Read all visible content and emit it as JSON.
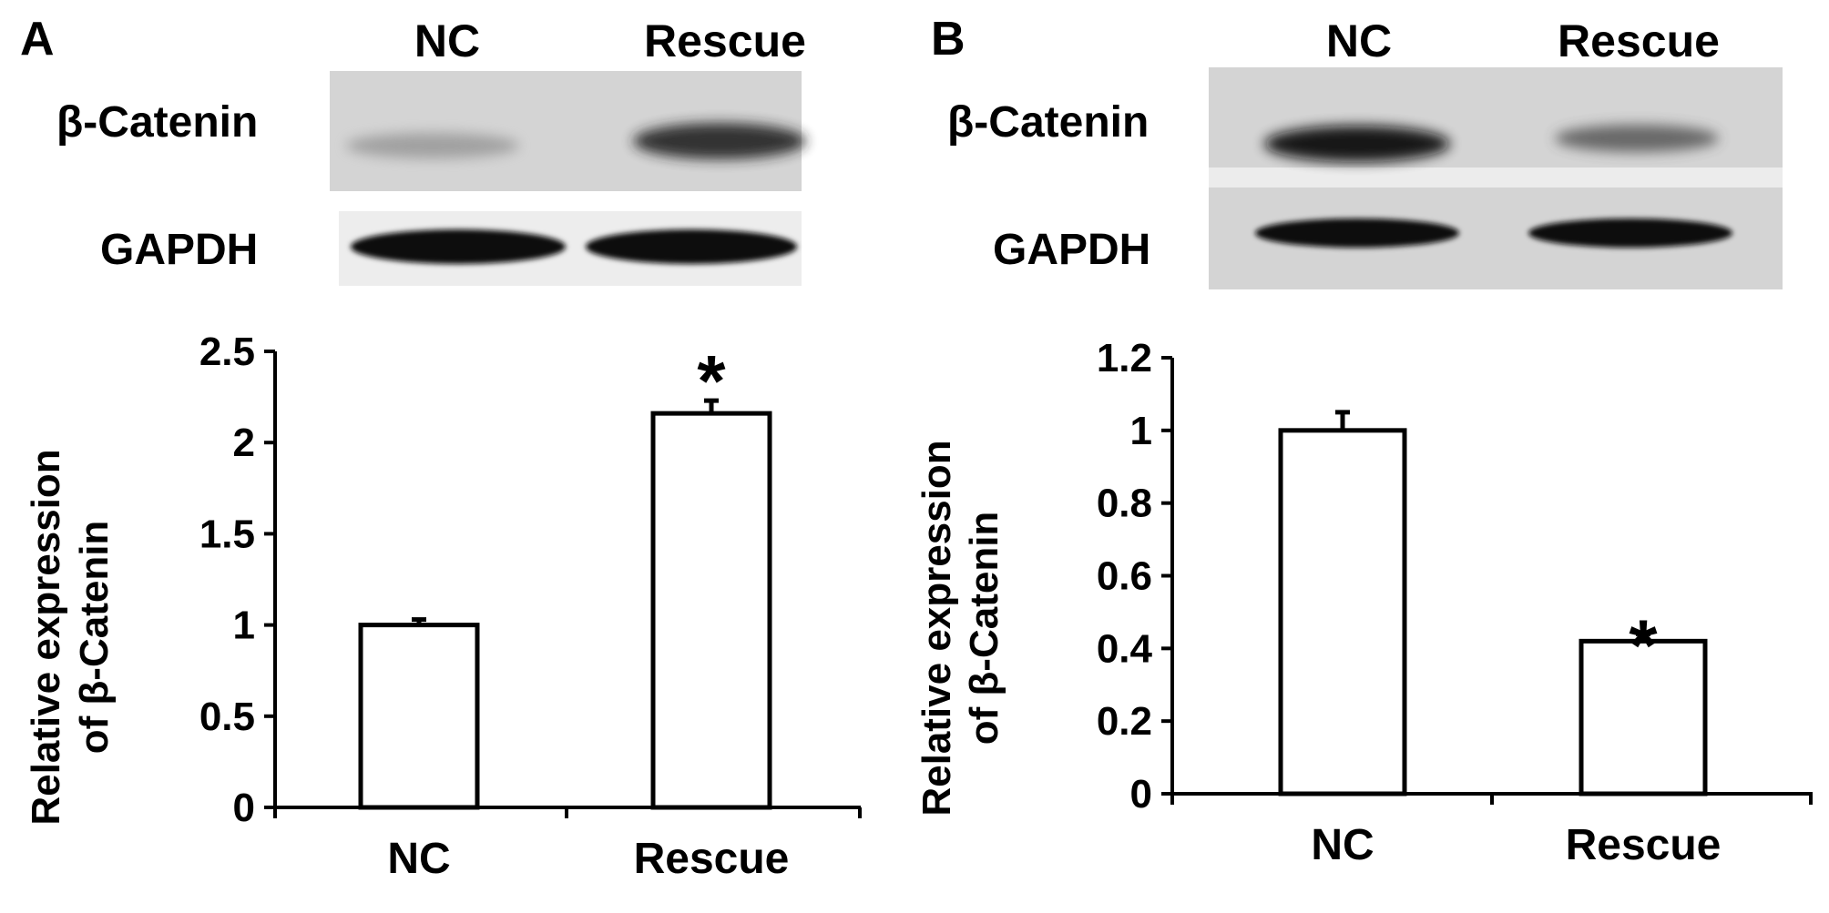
{
  "figure": {
    "panels": [
      {
        "letter": "A",
        "blot": {
          "lanes": [
            "NC",
            "Rescue"
          ],
          "rows": [
            "β-Catenin",
            "GAPDH"
          ],
          "band_intensity": {
            "β-Catenin": [
              0.25,
              0.8
            ],
            "GAPDH": [
              1.0,
              1.0
            ]
          }
        }
      },
      {
        "letter": "B",
        "blot": {
          "lanes": [
            "NC",
            "Rescue"
          ],
          "rows": [
            "β-Catenin",
            "GAPDH"
          ],
          "band_intensity": {
            "β-Catenin": [
              0.95,
              0.55
            ],
            "GAPDH": [
              1.0,
              1.0
            ]
          }
        }
      }
    ]
  },
  "chart_data": [
    {
      "type": "bar",
      "panel": "A",
      "categories": [
        "NC",
        "Rescue"
      ],
      "values": [
        1.0,
        2.16
      ],
      "errors": [
        0.03,
        0.07
      ],
      "significance": [
        "",
        "*"
      ],
      "ylabel_line1": "Relative expression",
      "ylabel_line2": "of β-Catenin",
      "ylim": [
        0,
        2.5
      ],
      "yticks": [
        "0",
        "0.5",
        "1",
        "1.5",
        "2",
        "2.5"
      ],
      "ytick_values": [
        0,
        0.5,
        1,
        1.5,
        2,
        2.5
      ]
    },
    {
      "type": "bar",
      "panel": "B",
      "categories": [
        "NC",
        "Rescue"
      ],
      "values": [
        1.0,
        0.42
      ],
      "errors": [
        0.05,
        0.02
      ],
      "significance": [
        "",
        "*"
      ],
      "ylabel_line1": "Relative expression",
      "ylabel_line2": "of β-Catenin",
      "ylim": [
        0,
        1.2
      ],
      "yticks": [
        "0",
        "0.2",
        "0.4",
        "0.6",
        "0.8",
        "1",
        "1.2"
      ],
      "ytick_values": [
        0,
        0.2,
        0.4,
        0.6,
        0.8,
        1,
        1.2
      ]
    }
  ]
}
